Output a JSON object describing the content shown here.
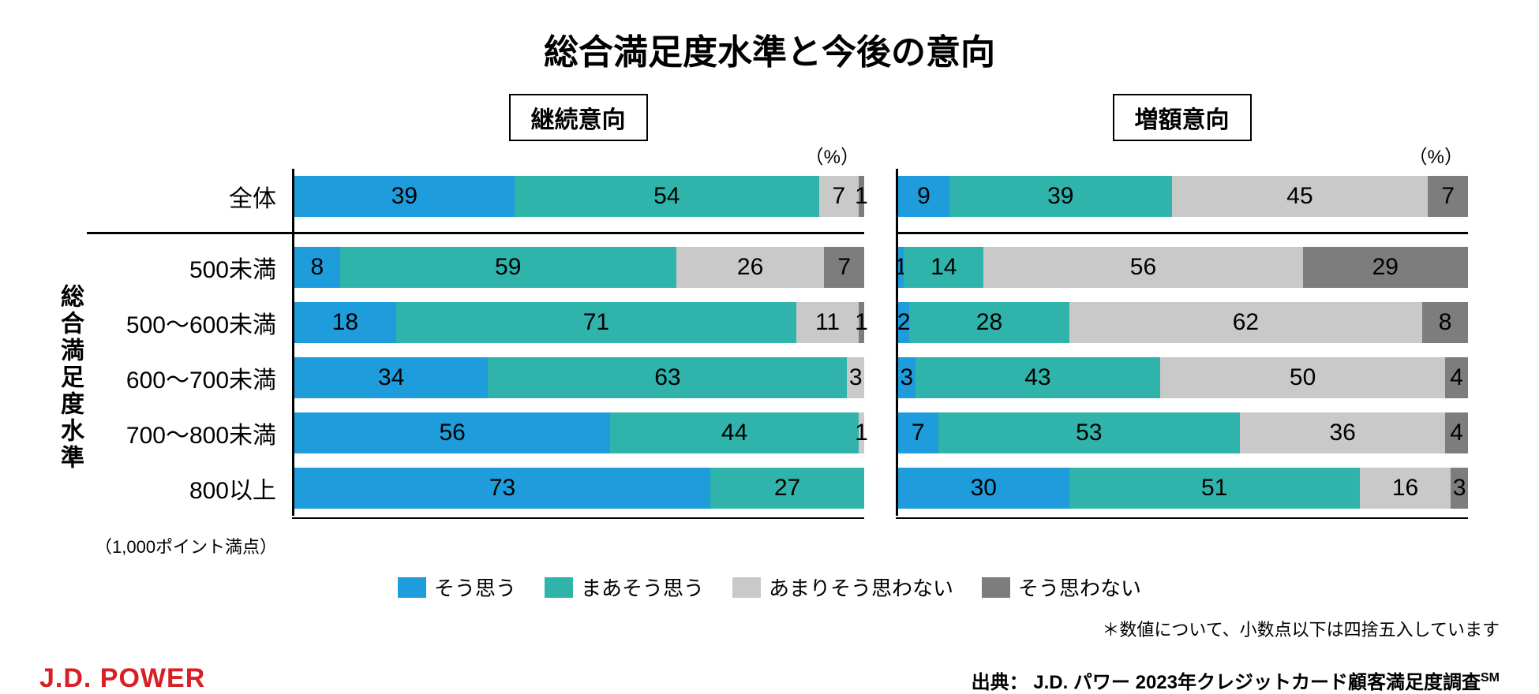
{
  "title": "総合満足度水準と今後の意向",
  "y_axis_label": "総合満足度水準",
  "unit_label": "（%）",
  "footnote_points": "（1,000ポイント満点）",
  "footnote_rounding": "＊数値について、小数点以下は四捨五入しています",
  "source": "出典：  J.D. パワー 2023年クレジットカード顧客満足度調査",
  "source_sm": "SM",
  "logo_text": "J.D. POWER",
  "logo_color": "#d81f26",
  "colors": {
    "c1": "#1e9cdc",
    "c2": "#2fb3ab",
    "c3": "#c9c9c9",
    "c4": "#7d7d7d",
    "text": "#000000",
    "bg": "#ffffff"
  },
  "legend": [
    {
      "label": "そう思う",
      "color_key": "c1"
    },
    {
      "label": "まあそう思う",
      "color_key": "c2"
    },
    {
      "label": "あまりそう思わない",
      "color_key": "c3"
    },
    {
      "label": "そう思わない",
      "color_key": "c4"
    }
  ],
  "charts": [
    {
      "subtitle": "継続意向",
      "rows": [
        {
          "label": "全体",
          "overall": true,
          "values": [
            39,
            54,
            7,
            1
          ]
        },
        {
          "label": "500未満",
          "values": [
            8,
            59,
            26,
            7
          ]
        },
        {
          "label": "500～600未満",
          "values": [
            18,
            71,
            11,
            1
          ]
        },
        {
          "label": "600～700未満",
          "values": [
            34,
            63,
            3,
            0
          ]
        },
        {
          "label": "700～800未満",
          "values": [
            56,
            44,
            1,
            0
          ]
        },
        {
          "label": "800以上",
          "values": [
            73,
            27,
            0,
            0
          ]
        }
      ]
    },
    {
      "subtitle": "増額意向",
      "rows": [
        {
          "label": "全体",
          "overall": true,
          "values": [
            9,
            39,
            45,
            7
          ]
        },
        {
          "label": "500未満",
          "values": [
            1,
            14,
            56,
            29
          ]
        },
        {
          "label": "500～600未満",
          "values": [
            2,
            28,
            62,
            8
          ]
        },
        {
          "label": "600～700未満",
          "values": [
            3,
            43,
            50,
            4
          ]
        },
        {
          "label": "700～800未満",
          "values": [
            7,
            53,
            36,
            4
          ]
        },
        {
          "label": "800以上",
          "values": [
            30,
            51,
            16,
            3
          ]
        }
      ]
    }
  ],
  "typography": {
    "title_fontsize": 44,
    "subtitle_fontsize": 30,
    "label_fontsize": 30,
    "value_fontsize": 30,
    "legend_fontsize": 26,
    "footnote_fontsize": 22
  }
}
